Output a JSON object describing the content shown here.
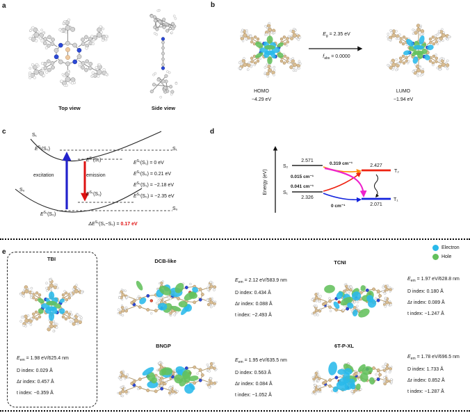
{
  "panel_a": {
    "label": "a",
    "top_caption": "Top view",
    "side_caption": "Side view"
  },
  "panel_b": {
    "label": "b",
    "gap": {
      "sym": "E",
      "sub": "g",
      "rest": " = 2.35 eV"
    },
    "osc": {
      "sym": "f",
      "sub": "abs",
      "rest": " = 0.0000"
    },
    "homo": {
      "name": "HOMO",
      "energy": "−4.29 eV"
    },
    "lumo": {
      "name": "LUMO",
      "energy": "−1.94 eV"
    }
  },
  "panel_c": {
    "label": "c",
    "s1_curve": "S₁",
    "s0_curve": "S₀",
    "excitation": "excitation",
    "emission": "emission",
    "right_top_state": "S₁",
    "right_bottom_state": "S₀",
    "marks": {
      "fc": {
        "sym": "E",
        "sup": "S₁",
        "rest": "(S₀)"
      },
      "s1min": {
        "sym": "E",
        "sup": "S₁",
        "rest": "(S₁)"
      },
      "s0s1": {
        "sym": "E",
        "sup": "S₀",
        "rest": "(S₁)"
      },
      "s0s0": {
        "sym": "E",
        "sup": "S₀",
        "rest": "(S₀)"
      }
    },
    "energies": [
      {
        "sym": "E",
        "sup": "S₁",
        "rest": "(S₁) = 0 eV"
      },
      {
        "sym": "E",
        "sup": "S₁",
        "rest": "(S₀) = 0.21 eV"
      },
      {
        "sym": "E",
        "sup": "S₀",
        "rest": "(S₁) = −2.18 eV"
      },
      {
        "sym": "E",
        "sup": "S₀",
        "rest": "(S₀) = −2.35 eV"
      }
    ],
    "reorg": {
      "pre": "ΔE",
      "sup": "S₀",
      "mid": "(S₁−S₀) = ",
      "value": "0.17 eV"
    }
  },
  "panel_d": {
    "label": "d",
    "axis_label": "Energy (eV)",
    "levels": {
      "s2": {
        "label": "S₂",
        "value": "2.571"
      },
      "s1": {
        "label": "S₁",
        "value": "2.326"
      },
      "t2": {
        "label": "T₂",
        "value": "2.427"
      },
      "t1": {
        "label": "T₁",
        "value": "2.071"
      }
    },
    "soc": {
      "s2t2": "0.015 cm⁻¹",
      "s1t2": "0.041 cm⁻¹",
      "s2t1": "0.319 cm⁻¹",
      "s1t1": "0 cm⁻¹"
    }
  },
  "panel_e": {
    "label": "e",
    "legend": {
      "electron": "Electron",
      "hole": "Hole",
      "electron_color": "#29b9ea",
      "hole_color": "#63c05c"
    },
    "monomer": {
      "title": "TBI",
      "l1_sym": "E",
      "l1_sub": "em",
      "l1_rest": " = 1.98 eV/625.4 nm",
      "l2": "D index: 0.029 Å",
      "l3": "Δr index: 0.457 Å",
      "l4": "t index: −0.359 Å"
    },
    "structures": [
      {
        "title": "DCB-like",
        "l1_sym": "E",
        "l1_sub": "em",
        "l1_rest": " = 2.12 eV/583.9 nm",
        "l2": "D index: 0.434 Å",
        "l3": "Δr index: 0.088 Å",
        "l4": "t index: −2.493 Å"
      },
      {
        "title": "TCNI",
        "l1_sym": "E",
        "l1_sub": "em",
        "l1_rest": " = 1.97 eV/628.8 nm",
        "l2": "D index: 0.180 Å",
        "l3": "Δr index: 0.089 Å",
        "l4": "t index: −1.247 Å"
      },
      {
        "title": "BNGP",
        "l1_sym": "E",
        "l1_sub": "em",
        "l1_rest": " = 1.95 eV/635.5 nm",
        "l2": "D index: 0.563 Å",
        "l3": "Δr index: 0.084 Å",
        "l4": "t index: −1.052 Å"
      },
      {
        "title": "6T-P-XL",
        "l1_sym": "E",
        "l1_sub": "em",
        "l1_rest": " = 1.78 eV/696.5 nm",
        "l2": "D index: 1.733 Å",
        "l3": "Δr index: 0.852 Å",
        "l4": "t index: −1.287 Å"
      }
    ]
  }
}
